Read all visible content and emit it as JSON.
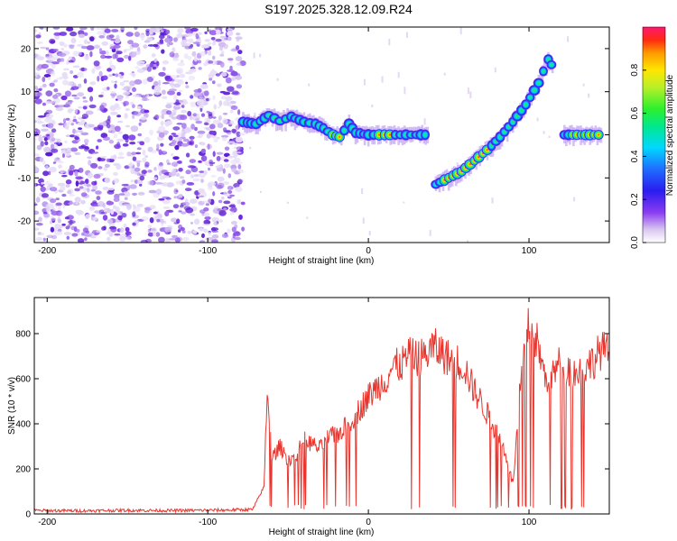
{
  "title": "S197.2025.328.12.09.R24",
  "colors": {
    "snr_line": "#e8362e",
    "frame": "#000000"
  },
  "chart_data": [
    {
      "type": "heatmap",
      "xlabel": "Height of straight line (km)",
      "ylabel": "Frequency (Hz)",
      "xlim": [
        -208,
        150
      ],
      "ylim": [
        -25,
        25
      ],
      "xticks": [
        -200,
        -100,
        0,
        100
      ],
      "yticks": [
        -20,
        -10,
        0,
        10,
        20
      ],
      "colorbar": {
        "label": "Normalized spectral amplitude",
        "range": [
          0,
          1
        ],
        "ticks": [
          0.0,
          0.2,
          0.4,
          0.6,
          0.8
        ]
      },
      "ridge": [
        {
          "x": -78,
          "f": 3.0
        },
        {
          "x": -70,
          "f": 2.5
        },
        {
          "x": -62,
          "f": 4.5
        },
        {
          "x": -55,
          "f": 3.2
        },
        {
          "x": -48,
          "f": 4.2
        },
        {
          "x": -40,
          "f": 3.0
        },
        {
          "x": -33,
          "f": 2.5
        },
        {
          "x": -28,
          "f": 1.5
        },
        {
          "x": -22,
          "f": 0.0
        },
        {
          "x": -18,
          "f": -0.5
        },
        {
          "x": -12,
          "f": 2.5
        },
        {
          "x": -8,
          "f": 0.5
        },
        {
          "x": 0,
          "f": 0.0
        },
        {
          "x": 10,
          "f": 0.0
        },
        {
          "x": 20,
          "f": 0.0
        },
        {
          "x": 30,
          "f": 0.0
        },
        {
          "x": 38,
          "f": 0.0
        },
        {
          "x": 42,
          "f": -11.5
        },
        {
          "x": 50,
          "f": -10.0
        },
        {
          "x": 58,
          "f": -8.5
        },
        {
          "x": 66,
          "f": -6.0
        },
        {
          "x": 74,
          "f": -3.5
        },
        {
          "x": 82,
          "f": -0.5
        },
        {
          "x": 90,
          "f": 3.0
        },
        {
          "x": 98,
          "f": 7.0
        },
        {
          "x": 106,
          "f": 12.0
        },
        {
          "x": 112,
          "f": 17.5
        },
        {
          "x": 116,
          "f": 15.0
        },
        {
          "x": 122,
          "f": 0.0
        },
        {
          "x": 130,
          "f": 0.0
        },
        {
          "x": 138,
          "f": 0.0
        },
        {
          "x": 146,
          "f": 0.0
        }
      ]
    },
    {
      "type": "line",
      "xlabel": "Height of straight line (km)",
      "ylabel": "SNR (10 * v/v)",
      "xlim": [
        -208,
        150
      ],
      "ylim": [
        0,
        960
      ],
      "xticks": [
        -200,
        -100,
        0,
        100
      ],
      "yticks": [
        0,
        200,
        400,
        600,
        800
      ],
      "series": [
        {
          "name": "SNR",
          "x": [
            -208,
            -180,
            -150,
            -120,
            -90,
            -72,
            -65,
            -63,
            -60,
            -55,
            -50,
            -45,
            -40,
            -35,
            -30,
            -25,
            -20,
            -15,
            -10,
            -5,
            0,
            5,
            10,
            15,
            20,
            25,
            30,
            35,
            40,
            45,
            50,
            55,
            60,
            65,
            70,
            75,
            80,
            85,
            90,
            95,
            100,
            105,
            110,
            115,
            120,
            125,
            130,
            135,
            140,
            145,
            150
          ],
          "y": [
            15,
            14,
            16,
            15,
            17,
            20,
            120,
            550,
            250,
            300,
            240,
            260,
            330,
            310,
            290,
            340,
            350,
            380,
            420,
            470,
            520,
            560,
            590,
            650,
            660,
            700,
            690,
            700,
            740,
            720,
            690,
            680,
            650,
            560,
            500,
            430,
            360,
            280,
            130,
            600,
            840,
            760,
            600,
            620,
            680,
            640,
            620,
            650,
            680,
            730,
            710
          ]
        }
      ]
    }
  ]
}
